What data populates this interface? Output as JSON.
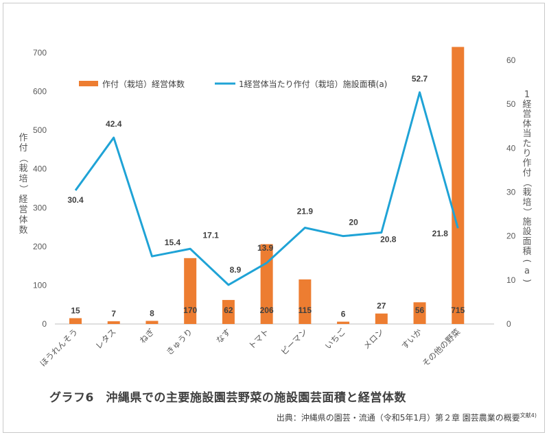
{
  "chart_data": {
    "type": "bar+line",
    "title": "グラフ6　沖縄県での主要施設園芸野菜の施設園芸面積と経営体数",
    "source": "出典：沖縄県の園芸・流通（令和5年1月）第２章 園芸農業の概要",
    "source_sup": "文献4)",
    "categories": [
      "ほうれんそう",
      "レタス",
      "ねぎ",
      "きゅうり",
      "なす",
      "トマト",
      "ピーマン",
      "いちご",
      "メロン",
      "すいか",
      "その他の野菜"
    ],
    "series": [
      {
        "name": "作付（栽培）経営体数",
        "type": "bar",
        "axis": "left",
        "color": "#ED7D31",
        "values": [
          15,
          7,
          8,
          170,
          62,
          206,
          115,
          6,
          27,
          56,
          715
        ]
      },
      {
        "name": "1経営体当たり作付（栽培）施設面積(a)",
        "type": "line",
        "axis": "right",
        "color": "#1FA3D6",
        "values": [
          30.4,
          42.4,
          15.4,
          17.1,
          8.9,
          13.9,
          21.9,
          20,
          20.8,
          52.7,
          21.8
        ]
      }
    ],
    "y_left": {
      "label": "作付（栽培）経営体数",
      "ylim": [
        0,
        700
      ],
      "ticks": [
        0,
        100,
        200,
        300,
        400,
        500,
        600,
        700
      ]
    },
    "y_right": {
      "label": "1経営体当たり作付（栽培）施設面積(a)",
      "ylim": [
        0,
        60
      ],
      "ticks": [
        0,
        10,
        20,
        30,
        40,
        50,
        60
      ]
    },
    "legend_position": "top-left",
    "grid": false
  }
}
